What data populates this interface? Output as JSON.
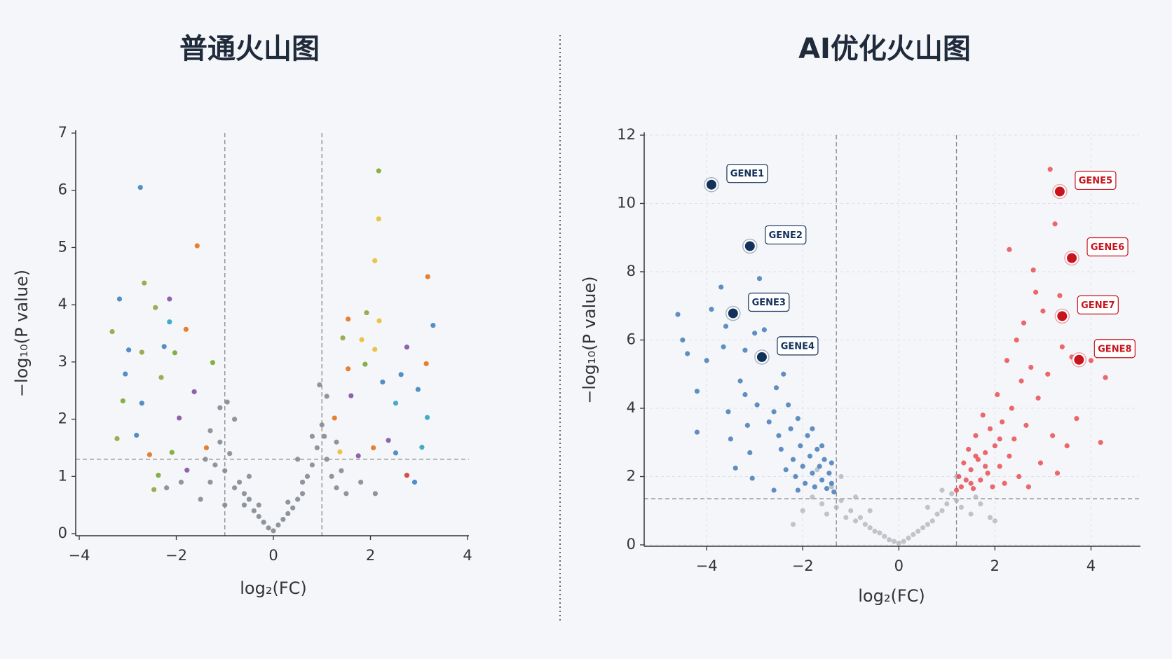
{
  "chart_data": [
    {
      "type": "scatter",
      "title": "普通火山图",
      "xlabel": "log₂(FC)",
      "ylabel": "−log₁₀(P value)",
      "xlim": [
        -4,
        4
      ],
      "ylim": [
        0,
        7
      ],
      "xticks": [
        {
          "value": -4,
          "label": "−4"
        },
        {
          "value": -2,
          "label": "−2"
        },
        0,
        2,
        4
      ],
      "yticks": [
        0,
        1,
        2,
        3,
        4,
        5,
        6,
        7
      ],
      "grid": false,
      "thresholds": {
        "x": [
          -1,
          1
        ],
        "y": 1.3
      },
      "series": [
        {
          "color": "#868a92",
          "opacity": 0.9,
          "x": [
            -1.5,
            -1.3,
            -1.2,
            -1.1,
            -1.0,
            -0.9,
            -0.8,
            -0.7,
            -0.6,
            -0.5,
            -0.4,
            -0.3,
            -0.2,
            -0.1,
            0,
            0.1,
            0.2,
            0.3,
            0.4,
            0.5,
            0.6,
            0.7,
            0.8,
            0.9,
            1.0,
            1.1,
            1.2,
            1.3,
            1.5,
            -1.4,
            -1.1,
            -0.8,
            -0.5,
            0.5,
            0.8,
            1.1,
            1.4,
            -2.2,
            -1.9,
            1.8,
            2.1,
            -0.95,
            0.95,
            -0.6,
            0.6,
            -1.0,
            1.05,
            -1.3,
            1.3,
            -0.3,
            0.3
          ],
          "values": [
            0.6,
            0.9,
            1.2,
            1.6,
            1.1,
            1.4,
            0.8,
            0.9,
            0.5,
            0.6,
            0.4,
            0.3,
            0.2,
            0.1,
            0.05,
            0.15,
            0.25,
            0.35,
            0.45,
            0.6,
            0.7,
            1.0,
            1.2,
            1.5,
            1.9,
            1.3,
            1.0,
            0.8,
            0.7,
            1.3,
            2.2,
            2.0,
            1.0,
            1.3,
            1.7,
            2.4,
            1.1,
            0.8,
            0.9,
            0.9,
            0.7,
            2.3,
            2.6,
            0.7,
            0.9,
            0.5,
            1.7,
            1.8,
            1.6,
            0.5,
            0.55
          ]
        },
        {
          "opacity": 0.95,
          "x": [
            -2.74,
            2.17,
            2.17,
            -1.57,
            2.09,
            -2.66,
            3.18,
            -3.17,
            -2.14,
            -2.43,
            1.54,
            1.92,
            2.18,
            3.29,
            -3.32,
            -1.8,
            -2.14,
            1.43,
            1.82,
            -2.98,
            -2.71,
            -2.25,
            2.75,
            2.09,
            -2.03,
            -1.25,
            3.15,
            1.54,
            1.89,
            -3.05,
            -2.31,
            2.63,
            2.25,
            -3.1,
            -2.71,
            2.52,
            2.98,
            3.17,
            -3.22,
            -2.82,
            -2.55,
            -2.09,
            2.37,
            2.52,
            2.75,
            2.91,
            3.06,
            -2.37,
            -2.46,
            1.75,
            2.06,
            -1.78,
            -1.38,
            1.37,
            1.6,
            -1.94,
            -1.63,
            1.26
          ],
          "values": [
            6.05,
            6.34,
            5.5,
            5.03,
            4.77,
            4.38,
            4.49,
            4.1,
            4.1,
            3.95,
            3.75,
            3.86,
            3.72,
            3.64,
            3.53,
            3.57,
            3.7,
            3.42,
            3.39,
            3.21,
            3.17,
            3.27,
            3.26,
            3.22,
            3.16,
            2.99,
            2.97,
            2.88,
            2.96,
            2.79,
            2.73,
            2.78,
            2.65,
            2.32,
            2.28,
            2.28,
            2.52,
            2.03,
            1.66,
            1.72,
            1.38,
            1.42,
            1.63,
            1.41,
            1.02,
            0.9,
            1.51,
            1.02,
            0.77,
            1.36,
            1.5,
            1.11,
            1.5,
            1.43,
            2.41,
            2.02,
            2.48,
            2.02
          ],
          "colors": [
            "#4a8ac4",
            "#7fae3c",
            "#e9c23f",
            "#e57a28",
            "#e9c23f",
            "#9aa84a",
            "#e57a28",
            "#4a8ac4",
            "#8c5ba8",
            "#9aa84a",
            "#e57a28",
            "#9aa84a",
            "#e9c23f",
            "#4a8ac4",
            "#9aa84a",
            "#e57a28",
            "#3aaac2",
            "#9aa84a",
            "#e9c23f",
            "#4a8ac4",
            "#9aa84a",
            "#4a8ac4",
            "#8c5ba8",
            "#e9c23f",
            "#7fae3c",
            "#7fae3c",
            "#e57a28",
            "#e57a28",
            "#7fae3c",
            "#4a8ac4",
            "#9aa84a",
            "#4a8ac4",
            "#4a8ac4",
            "#7fae3c",
            "#4a8ac4",
            "#3aaac2",
            "#4a8ac4",
            "#3aaac2",
            "#9aa84a",
            "#4a8ac4",
            "#e57a28",
            "#7fae3c",
            "#8c5ba8",
            "#4a8ac4",
            "#d4483a",
            "#4a8ac4",
            "#3aaac2",
            "#7fae3c",
            "#9aa84a",
            "#8c5ba8",
            "#e57a28",
            "#8c5ba8",
            "#e57a28",
            "#e9c23f",
            "#8c5ba8",
            "#8c5ba8",
            "#8c5ba8",
            "#e57a28"
          ]
        }
      ]
    },
    {
      "type": "scatter",
      "title": "AI优化火山图",
      "xlabel": "log₂(FC)",
      "ylabel": "−log₁₀(P value)",
      "xlim": [
        -5.3,
        5.0
      ],
      "ylim": [
        0,
        12
      ],
      "xticks": [
        {
          "value": -4,
          "label": "−4"
        },
        {
          "value": -2,
          "label": "−2"
        },
        0,
        2,
        4
      ],
      "yticks": [
        0,
        2,
        4,
        6,
        8,
        10,
        12
      ],
      "grid": true,
      "thresholds": {
        "x": [
          -1.3,
          1.2
        ],
        "y": 1.35
      },
      "series": [
        {
          "color": "#b2b3b8",
          "opacity": 0.75,
          "x": [
            -2.0,
            -1.8,
            -1.6,
            -1.5,
            -1.4,
            -1.3,
            -1.2,
            -1.1,
            -1.0,
            -0.9,
            -0.8,
            -0.7,
            -0.6,
            -0.5,
            -0.4,
            -0.3,
            -0.2,
            -0.1,
            0,
            0.1,
            0.2,
            0.3,
            0.4,
            0.5,
            0.6,
            0.7,
            0.8,
            0.9,
            1.0,
            1.1,
            1.2,
            1.3,
            1.5,
            1.7,
            1.9,
            -1.7,
            -1.2,
            -0.9,
            -0.6,
            0.6,
            0.9,
            1.2,
            1.6,
            -2.2,
            2.0
          ],
          "values": [
            1.0,
            1.4,
            1.2,
            0.9,
            1.7,
            1.1,
            1.3,
            0.8,
            1.0,
            0.7,
            0.8,
            0.6,
            0.5,
            0.4,
            0.35,
            0.25,
            0.15,
            0.1,
            0.05,
            0.1,
            0.2,
            0.3,
            0.4,
            0.5,
            0.6,
            0.7,
            0.9,
            1.0,
            1.2,
            1.5,
            1.3,
            1.1,
            0.9,
            1.2,
            0.8,
            2.2,
            2.0,
            1.4,
            1.0,
            1.1,
            1.6,
            2.0,
            1.4,
            0.6,
            0.7
          ]
        },
        {
          "color": "#2e6cb0",
          "opacity": 0.75,
          "x": [
            -4.6,
            -4.5,
            -4.4,
            -4.2,
            -4.2,
            -4.0,
            -3.9,
            -3.7,
            -3.6,
            -3.65,
            -3.55,
            -3.5,
            -3.4,
            -3.3,
            -3.2,
            -3.15,
            -3.1,
            -3.05,
            -3.2,
            -3.0,
            -2.9,
            -2.8,
            -2.95,
            -2.7,
            -2.6,
            -2.55,
            -2.5,
            -2.45,
            -2.4,
            -2.3,
            -2.25,
            -2.2,
            -2.15,
            -2.1,
            -2.05,
            -2.0,
            -1.95,
            -1.9,
            -1.85,
            -1.8,
            -1.75,
            -1.7,
            -1.65,
            -1.6,
            -1.55,
            -1.5,
            -1.45,
            -1.4,
            -1.35,
            -1.4,
            -2.35,
            -2.6,
            -1.8,
            -2.1,
            -1.6
          ],
          "values": [
            6.75,
            6.0,
            5.6,
            4.5,
            3.3,
            5.4,
            6.9,
            7.55,
            6.4,
            5.8,
            3.9,
            3.1,
            2.25,
            4.8,
            4.4,
            3.5,
            2.7,
            1.95,
            5.7,
            6.2,
            7.8,
            6.3,
            4.1,
            3.6,
            1.6,
            4.6,
            3.2,
            2.8,
            5.0,
            4.1,
            3.4,
            2.5,
            2.0,
            3.7,
            2.9,
            2.3,
            1.8,
            3.2,
            2.6,
            2.1,
            1.7,
            2.8,
            2.3,
            1.9,
            2.5,
            1.65,
            2.1,
            1.8,
            1.55,
            2.4,
            2.2,
            3.9,
            3.4,
            1.6,
            2.9
          ]
        },
        {
          "color": "#e8383e",
          "opacity": 0.75,
          "x": [
            1.2,
            1.25,
            1.3,
            1.35,
            1.4,
            1.45,
            1.5,
            1.55,
            1.6,
            1.65,
            1.7,
            1.75,
            1.8,
            1.85,
            1.9,
            1.95,
            2.0,
            2.05,
            2.1,
            2.15,
            2.2,
            2.25,
            2.3,
            2.35,
            2.4,
            2.45,
            2.5,
            2.55,
            2.6,
            2.65,
            2.7,
            2.75,
            2.8,
            2.85,
            2.9,
            2.95,
            3.0,
            3.1,
            3.15,
            3.2,
            3.25,
            3.3,
            3.35,
            3.4,
            3.5,
            3.6,
            3.7,
            4.0,
            4.2,
            4.3,
            2.3,
            1.8,
            2.1,
            1.5,
            1.6
          ],
          "values": [
            1.6,
            2.0,
            1.7,
            2.4,
            1.9,
            2.8,
            2.2,
            1.65,
            3.2,
            2.5,
            1.9,
            3.8,
            2.7,
            2.1,
            3.4,
            1.7,
            2.9,
            4.4,
            2.3,
            3.6,
            1.8,
            5.4,
            2.6,
            4.0,
            3.1,
            6.0,
            2.0,
            4.8,
            6.5,
            3.5,
            1.7,
            5.2,
            8.05,
            7.4,
            4.3,
            2.4,
            6.85,
            5.0,
            11.0,
            3.2,
            9.4,
            2.1,
            7.3,
            5.8,
            2.9,
            5.5,
            3.7,
            5.4,
            3.0,
            4.9,
            8.65,
            2.3,
            3.1,
            1.8,
            2.6
          ]
        },
        {
          "opacity": 1,
          "x": [
            -3.9,
            -3.1,
            -3.45,
            -2.85,
            3.35,
            3.6,
            3.4,
            3.75
          ],
          "values": [
            10.55,
            8.75,
            6.78,
            5.5,
            10.35,
            8.4,
            6.7,
            5.42
          ],
          "colors": [
            "#12325c",
            "#12325c",
            "#12325c",
            "#12325c",
            "#c8141c",
            "#c8141c",
            "#c8141c",
            "#c8141c"
          ],
          "labels": [
            "GENE1",
            "GENE2",
            "GENE3",
            "GENE4",
            "GENE5",
            "GENE6",
            "GENE7",
            "GENE8"
          ]
        }
      ]
    }
  ]
}
